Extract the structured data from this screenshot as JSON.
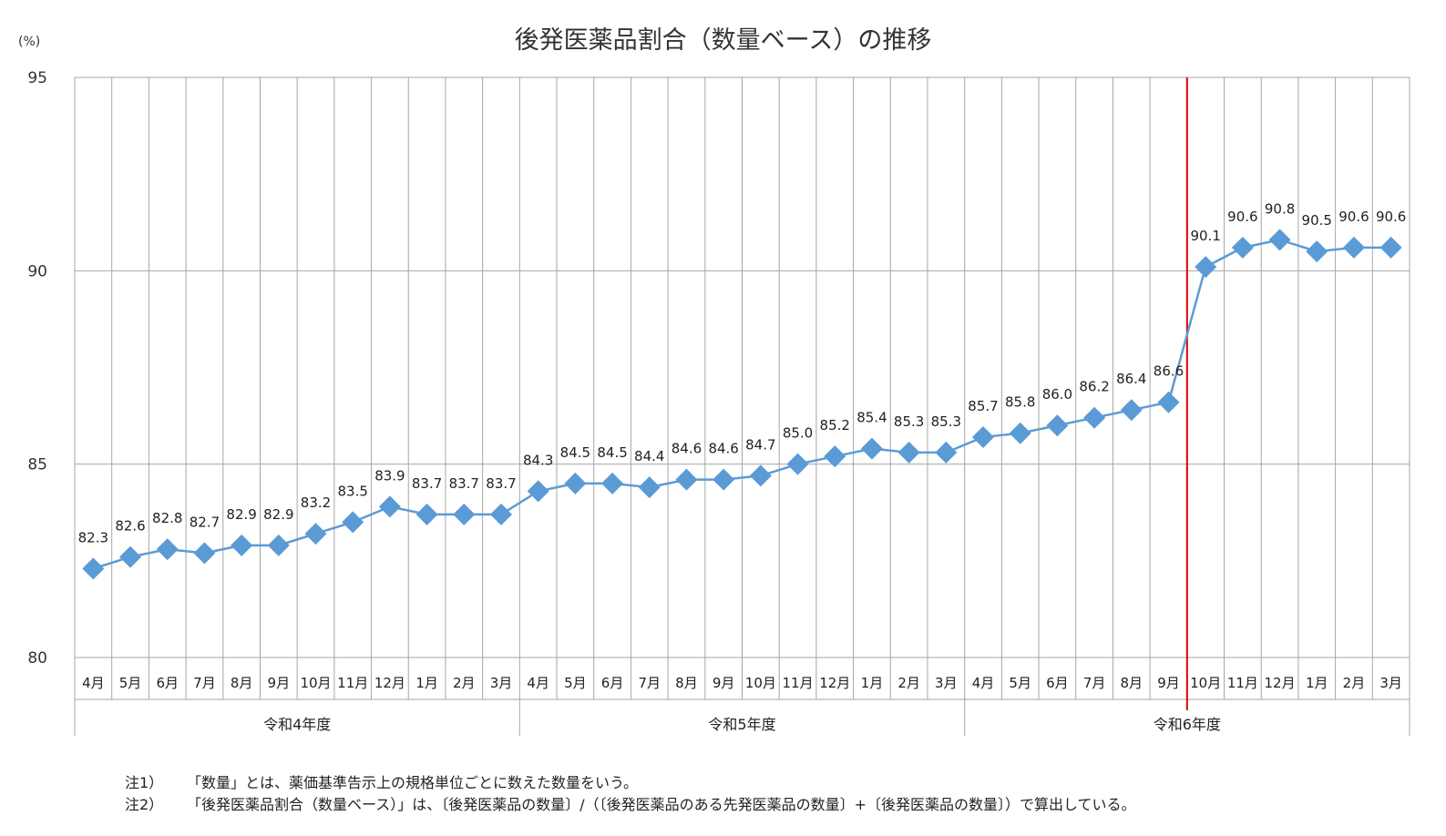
{
  "title": "後発医薬品割合（数量ベース）の推移",
  "unit_label": "(%)",
  "notes": [
    {
      "label": "注1）",
      "text": "「数量」とは、薬価基準告示上の規格単位ごとに数えた数量をいう。"
    },
    {
      "label": "注2）",
      "text": "「後発医薬品割合（数量ベース）」は、〔後発医薬品の数量〕/（〔後発医薬品のある先発医薬品の数量〕+〔後発医薬品の数量〕）で算出している。"
    }
  ],
  "colors": {
    "series": "#5b9bd5",
    "divider": "#e00000",
    "grid": "#a6a6a6",
    "axis": "#7f7f7f"
  },
  "chart_data": {
    "type": "line",
    "title": "後発医薬品割合（数量ベース）の推移",
    "ylabel": "(%)",
    "ylim": [
      80,
      95
    ],
    "yticks": [
      80,
      85,
      90,
      95
    ],
    "grid": true,
    "marker": "diamond",
    "categories": [
      "4月",
      "5月",
      "6月",
      "7月",
      "8月",
      "9月",
      "10月",
      "11月",
      "12月",
      "1月",
      "2月",
      "3月",
      "4月",
      "5月",
      "6月",
      "7月",
      "8月",
      "9月",
      "10月",
      "11月",
      "12月",
      "1月",
      "2月",
      "3月",
      "4月",
      "5月",
      "6月",
      "7月",
      "8月",
      "9月",
      "10月",
      "11月",
      "12月",
      "1月",
      "2月",
      "3月"
    ],
    "groups": [
      {
        "label": "令和4年度",
        "count": 12
      },
      {
        "label": "令和5年度",
        "count": 12
      },
      {
        "label": "令和6年度",
        "count": 12
      }
    ],
    "series": [
      {
        "values": [
          82.3,
          82.6,
          82.8,
          82.7,
          82.9,
          82.9,
          83.2,
          83.5,
          83.9,
          83.7,
          83.7,
          83.7,
          84.3,
          84.5,
          84.5,
          84.4,
          84.6,
          84.6,
          84.7,
          85.0,
          85.2,
          85.4,
          85.3,
          85.3,
          85.7,
          85.8,
          86.0,
          86.2,
          86.4,
          86.6,
          90.1,
          90.6,
          90.8,
          90.5,
          90.6,
          90.6
        ],
        "labels": [
          "82.3",
          "82.6",
          "82.8",
          "82.7",
          "82.9",
          "82.9",
          "83.2",
          "83.5",
          "83.9",
          "83.7",
          "83.7",
          "83.7",
          "84.3",
          "84.5",
          "84.5",
          "84.4",
          "84.6",
          "84.6",
          "84.7",
          "85.0",
          "85.2",
          "85.4",
          "85.3",
          "85.3",
          "85.7",
          "85.8",
          "86.0",
          "86.2",
          "86.4",
          "86.6",
          "90.1",
          "90.6",
          "90.8",
          "90.5",
          "90.6",
          "90.6"
        ]
      }
    ],
    "divider_after_index": 29
  }
}
